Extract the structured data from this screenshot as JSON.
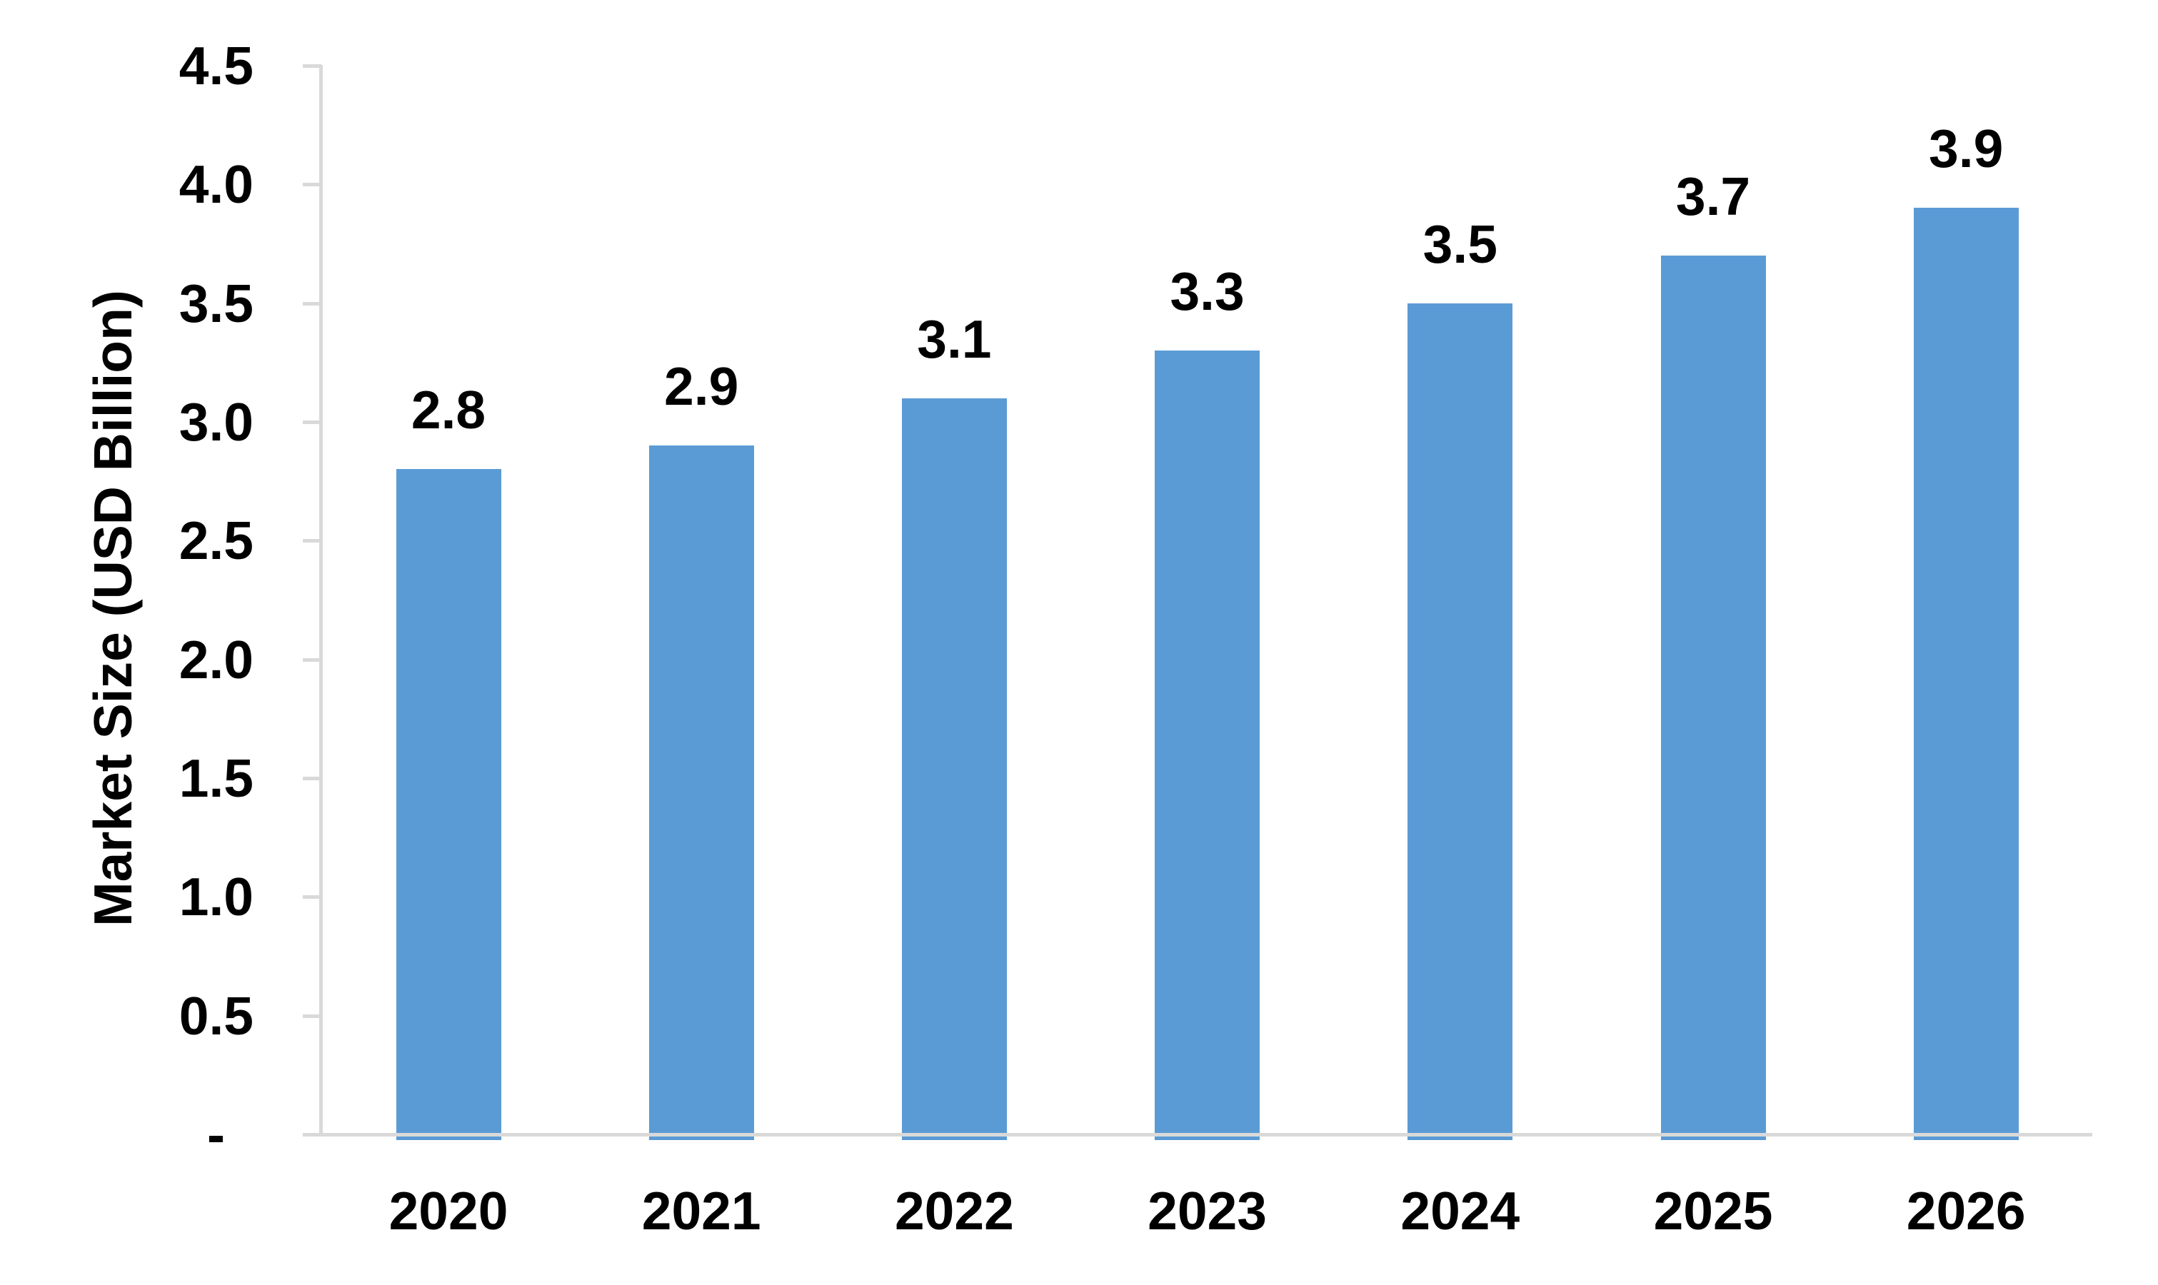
{
  "chart_data": {
    "type": "bar",
    "title": "",
    "ylabel": "Market Size (USD Billion)",
    "xlabel": "",
    "categories": [
      "2020",
      "2021",
      "2022",
      "2023",
      "2024",
      "2025",
      "2026"
    ],
    "values": [
      2.8,
      2.9,
      3.1,
      3.3,
      3.5,
      3.7,
      3.9
    ],
    "value_labels": [
      "2.8",
      "2.9",
      "3.1",
      "3.3",
      "3.5",
      "3.7",
      "3.9"
    ],
    "y_ticks": [
      {
        "value": 4.5,
        "label": "4.5"
      },
      {
        "value": 4.0,
        "label": "4.0"
      },
      {
        "value": 3.5,
        "label": "3.5"
      },
      {
        "value": 3.0,
        "label": "3.0"
      },
      {
        "value": 2.5,
        "label": "2.5"
      },
      {
        "value": 2.0,
        "label": "2.0"
      },
      {
        "value": 1.5,
        "label": "1.5"
      },
      {
        "value": 1.0,
        "label": "1.0"
      },
      {
        "value": 0.5,
        "label": "0.5"
      },
      {
        "value": 0.0,
        "label": "-"
      }
    ],
    "ylim": [
      0,
      4.5
    ],
    "grid": false,
    "legend": "none",
    "bar_color": "#5B9BD5",
    "axis_color": "#D9D9D9",
    "text_color": "#000000"
  }
}
